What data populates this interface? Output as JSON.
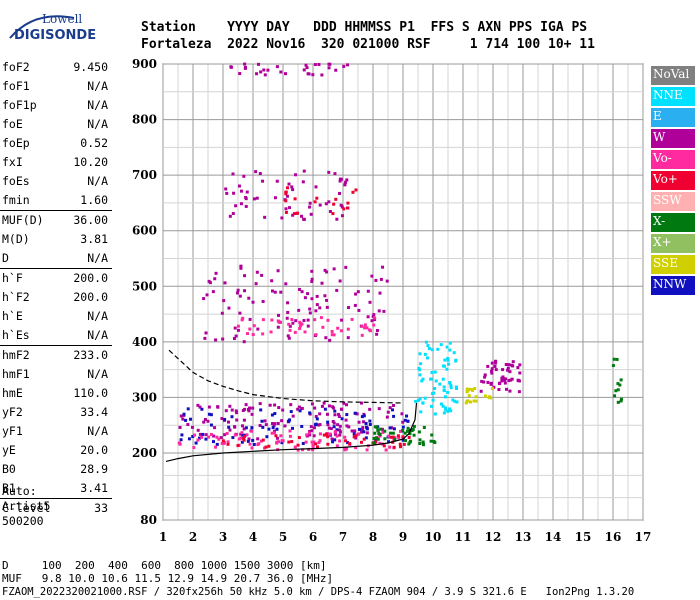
{
  "logo": {
    "line1": "Lowell",
    "line2": "DIGISONDE"
  },
  "header": {
    "row1": "Station    YYYY DAY   DDD HHMMSS P1  FFS S AXN PPS IGA PS",
    "row2": "Fortaleza  2022 Nov16  320 021000 RSF     1 714 100 10+ 11"
  },
  "params": [
    {
      "k": "foF2",
      "v": "9.450"
    },
    {
      "k": "foF1",
      "v": "N/A"
    },
    {
      "k": "foF1p",
      "v": "N/A"
    },
    {
      "k": "foE",
      "v": "N/A"
    },
    {
      "k": "foEp",
      "v": "0.52"
    },
    {
      "k": "fxI",
      "v": "10.20"
    },
    {
      "k": "foEs",
      "v": "N/A"
    },
    {
      "k": "fmin",
      "v": "1.60"
    },
    {
      "k": "MUF(D)",
      "v": "36.00"
    },
    {
      "k": "M(D)",
      "v": "3.81"
    },
    {
      "k": "D",
      "v": "N/A"
    },
    {
      "k": "h`F",
      "v": "200.0"
    },
    {
      "k": "h`F2",
      "v": "200.0"
    },
    {
      "k": "h`E",
      "v": "N/A"
    },
    {
      "k": "h`Es",
      "v": "N/A"
    },
    {
      "k": "hmF2",
      "v": "233.0"
    },
    {
      "k": "hmF1",
      "v": "N/A"
    },
    {
      "k": "hmE",
      "v": "110.0"
    },
    {
      "k": "yF2",
      "v": "33.4"
    },
    {
      "k": "yF1",
      "v": "N/A"
    },
    {
      "k": "yE",
      "v": "20.0"
    },
    {
      "k": "B0",
      "v": "28.9"
    },
    {
      "k": "B1",
      "v": "3.41"
    },
    {
      "k": "C-level",
      "v": "33"
    }
  ],
  "auto": {
    "line1": "Auto:",
    "line2": "Artist5",
    "line3": "500200"
  },
  "legend": [
    {
      "label": "NoVal",
      "color": "#808080"
    },
    {
      "label": "NNE",
      "color": "#00e0ff"
    },
    {
      "label": "E",
      "color": "#2ab0f0"
    },
    {
      "label": "W",
      "color": "#b0009a"
    },
    {
      "label": "Vo-",
      "color": "#ff2aa0"
    },
    {
      "label": "Vo+",
      "color": "#f00030"
    },
    {
      "label": "SSW",
      "color": "#ffb0b0"
    },
    {
      "label": "X-",
      "color": "#007a10"
    },
    {
      "label": "X+",
      "color": "#90c060"
    },
    {
      "label": "SSE",
      "color": "#d0d000"
    },
    {
      "label": "NNW",
      "color": "#1010c0"
    }
  ],
  "footer": {
    "d_row": "D     100  200  400  600  800 1000 1500 3000 [km]",
    "muf_row": "MUF   9.8 10.0 10.6 11.5 12.9 14.9 20.7 36.0 [MHz]",
    "info": "FZAOM_2022320021000.RSF / 320fx256h 50 kHz 5.0 km / DPS-4 FZAOM 904 / 3.9 S 321.6 E   Ion2Png 1.3.20"
  },
  "chart_data": {
    "type": "scatter",
    "xlim": [
      1,
      17
    ],
    "ylim": [
      80,
      900
    ],
    "x_ticks": [
      1,
      2,
      3,
      4,
      5,
      6,
      7,
      8,
      9,
      10,
      11,
      12,
      13,
      14,
      15,
      16,
      17
    ],
    "y_ticks": [
      80,
      200,
      300,
      400,
      500,
      600,
      700,
      800,
      900
    ],
    "grid": true,
    "traces": [
      {
        "name": "O-trace profile (solid)",
        "style": "solid",
        "x": [
          1.1,
          1.5,
          2,
          3,
          4,
          5,
          6,
          7,
          8,
          8.5,
          9,
          9.2,
          9.4,
          9.45
        ],
        "y": [
          185,
          190,
          195,
          200,
          203,
          206,
          208,
          210,
          214,
          218,
          225,
          235,
          260,
          290
        ]
      },
      {
        "name": "Extrapolated profile (dashed)",
        "style": "dashed",
        "x": [
          1.2,
          1.6,
          2,
          2.5,
          3,
          3.5,
          4,
          5,
          6,
          7,
          8,
          9
        ],
        "y": [
          385,
          365,
          345,
          330,
          320,
          312,
          305,
          298,
          294,
          292,
          291,
          290
        ]
      }
    ],
    "echo_regions": [
      {
        "series": "W",
        "x_range": [
          1.5,
          9.2
        ],
        "h_range": [
          225,
          290
        ],
        "count": 140
      },
      {
        "series": "NNW",
        "x_range": [
          1.5,
          9.3
        ],
        "h_range": [
          215,
          280
        ],
        "count": 90
      },
      {
        "series": "Vo-",
        "x_range": [
          1.5,
          9.0
        ],
        "h_range": [
          205,
          240
        ],
        "count": 90
      },
      {
        "series": "Vo+",
        "x_range": [
          3.0,
          9.4
        ],
        "h_range": [
          210,
          235
        ],
        "count": 40
      },
      {
        "series": "X-",
        "x_range": [
          8.0,
          10.3
        ],
        "h_range": [
          215,
          250
        ],
        "count": 40
      },
      {
        "series": "W",
        "x_range": [
          2.3,
          8.5
        ],
        "h_range": [
          400,
          540
        ],
        "count": 110
      },
      {
        "series": "Vo-",
        "x_range": [
          3.5,
          8.2
        ],
        "h_range": [
          410,
          445
        ],
        "count": 45
      },
      {
        "series": "W",
        "x_range": [
          3.0,
          7.3
        ],
        "h_range": [
          620,
          710
        ],
        "count": 60
      },
      {
        "series": "Vo+",
        "x_range": [
          5.0,
          7.6
        ],
        "h_range": [
          630,
          680
        ],
        "count": 20
      },
      {
        "series": "NNE",
        "x_range": [
          9.4,
          10.8
        ],
        "h_range": [
          270,
          400
        ],
        "count": 70
      },
      {
        "series": "W",
        "x_range": [
          11.6,
          12.9
        ],
        "h_range": [
          310,
          370
        ],
        "count": 50
      },
      {
        "series": "SSE",
        "x_range": [
          11.0,
          12.0
        ],
        "h_range": [
          290,
          320
        ],
        "count": 20
      },
      {
        "series": "X-",
        "x_range": [
          16.0,
          16.3
        ],
        "h_range": [
          290,
          380
        ],
        "count": 12
      },
      {
        "series": "W",
        "x_range": [
          3.0,
          7.3
        ],
        "h_range": [
          880,
          900
        ],
        "count": 30
      }
    ]
  }
}
